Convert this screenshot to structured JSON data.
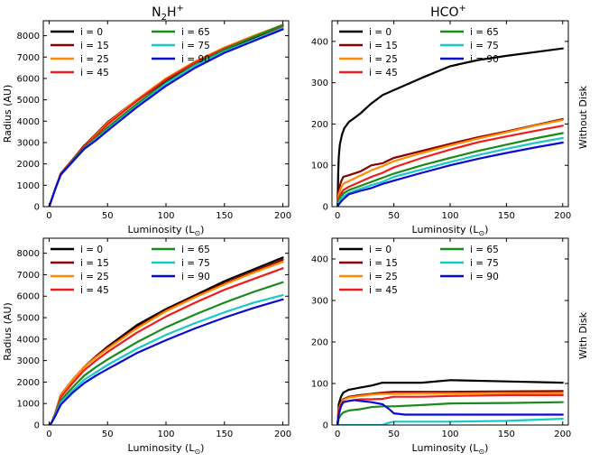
{
  "figure": {
    "col_titles": {
      "n2h": {
        "base": "N",
        "sub": "2",
        "mid": "H",
        "sup": "+"
      },
      "hco": {
        "base": "HCO",
        "sup": "+"
      }
    },
    "row_labels": [
      "Without Disk",
      "With Disk"
    ],
    "xlabel_main": "Luminosity (L",
    "xlabel_sub": "⊙",
    "xlabel_end": ")",
    "ylabel": "Radius (AU)"
  },
  "chart_data": [
    {
      "type": "line",
      "panel": "n2h-top",
      "title": "N2H+",
      "row": "Without Disk",
      "xlabel": "Luminosity (L⊙)",
      "ylabel": "Radius (AU)",
      "xlim": [
        -5,
        205
      ],
      "ylim": [
        0,
        8700
      ],
      "xticks": [
        0,
        50,
        100,
        150,
        200
      ],
      "yticks": [
        0,
        1000,
        2000,
        3000,
        4000,
        5000,
        6000,
        7000,
        8000
      ],
      "series": [
        {
          "name": "i = 0",
          "color": "#000000",
          "x": [
            0,
            1,
            5,
            10,
            20,
            30,
            40,
            50,
            75,
            100,
            125,
            150,
            175,
            200
          ],
          "y": [
            0,
            150,
            800,
            1550,
            2200,
            2850,
            3350,
            3850,
            4950,
            5900,
            6700,
            7350,
            7900,
            8450
          ]
        },
        {
          "name": "i = 15",
          "color": "#8b0000",
          "x": [
            0,
            1,
            5,
            10,
            20,
            30,
            40,
            50,
            75,
            100,
            125,
            150,
            175,
            200
          ],
          "y": [
            0,
            150,
            800,
            1550,
            2200,
            2850,
            3400,
            3950,
            5000,
            5950,
            6750,
            7400,
            7950,
            8500
          ]
        },
        {
          "name": "i = 25",
          "color": "#ff8c00",
          "x": [
            0,
            1,
            5,
            10,
            20,
            30,
            40,
            50,
            75,
            100,
            125,
            150,
            175,
            200
          ],
          "y": [
            0,
            150,
            800,
            1550,
            2200,
            2800,
            3350,
            3900,
            5000,
            6000,
            6800,
            7450,
            8000,
            8500
          ]
        },
        {
          "name": "i = 45",
          "color": "#ee1c1c",
          "x": [
            0,
            1,
            5,
            10,
            20,
            30,
            40,
            50,
            75,
            100,
            125,
            150,
            175,
            200
          ],
          "y": [
            0,
            150,
            800,
            1550,
            2200,
            2800,
            3300,
            3850,
            4950,
            5950,
            6750,
            7400,
            7950,
            8450
          ]
        },
        {
          "name": "i = 65",
          "color": "#1a8a1a",
          "x": [
            0,
            1,
            5,
            10,
            20,
            30,
            40,
            50,
            75,
            100,
            125,
            150,
            175,
            200
          ],
          "y": [
            0,
            150,
            800,
            1500,
            2150,
            2750,
            3200,
            3700,
            4800,
            5800,
            6650,
            7350,
            7950,
            8500
          ]
        },
        {
          "name": "i = 75",
          "color": "#17c9c9",
          "x": [
            0,
            1,
            5,
            10,
            20,
            30,
            40,
            50,
            75,
            100,
            125,
            150,
            175,
            200
          ],
          "y": [
            0,
            150,
            800,
            1500,
            2100,
            2700,
            3150,
            3600,
            4700,
            5750,
            6600,
            7250,
            7800,
            8350
          ]
        },
        {
          "name": "i = 90",
          "color": "#0a0ad0",
          "x": [
            0,
            1,
            5,
            10,
            20,
            30,
            40,
            50,
            75,
            100,
            125,
            150,
            175,
            200
          ],
          "y": [
            0,
            150,
            800,
            1500,
            2100,
            2700,
            3100,
            3550,
            4650,
            5650,
            6500,
            7200,
            7750,
            8300
          ]
        }
      ]
    },
    {
      "type": "line",
      "panel": "hco-top",
      "title": "HCO+",
      "row": "Without Disk",
      "xlabel": "Luminosity (L⊙)",
      "ylabel": "",
      "xlim": [
        -5,
        205
      ],
      "ylim": [
        0,
        450
      ],
      "xticks": [
        0,
        50,
        100,
        150,
        200
      ],
      "yticks": [
        0,
        100,
        200,
        300,
        400
      ],
      "series": [
        {
          "name": "i = 0",
          "color": "#000000",
          "x": [
            0,
            0.5,
            1,
            2,
            4,
            6,
            10,
            15,
            20,
            30,
            40,
            50,
            75,
            100,
            125,
            150,
            175,
            200
          ],
          "y": [
            0,
            80,
            120,
            150,
            175,
            190,
            205,
            215,
            225,
            250,
            270,
            282,
            312,
            340,
            355,
            365,
            374,
            383
          ]
        },
        {
          "name": "i = 15",
          "color": "#8b0000",
          "x": [
            0,
            1,
            3,
            5,
            10,
            20,
            30,
            40,
            50,
            75,
            100,
            125,
            150,
            175,
            200
          ],
          "y": [
            0,
            40,
            60,
            72,
            76,
            85,
            100,
            105,
            118,
            135,
            152,
            168,
            182,
            197,
            212
          ]
        },
        {
          "name": "i = 25",
          "color": "#ff8c00",
          "x": [
            0,
            1,
            3,
            5,
            10,
            20,
            30,
            40,
            50,
            75,
            100,
            125,
            150,
            175,
            200
          ],
          "y": [
            0,
            30,
            45,
            55,
            62,
            75,
            88,
            98,
            110,
            130,
            148,
            165,
            180,
            196,
            210
          ]
        },
        {
          "name": "i = 45",
          "color": "#ee1c1c",
          "x": [
            0,
            1,
            3,
            5,
            10,
            20,
            30,
            40,
            50,
            75,
            100,
            125,
            150,
            175,
            200
          ],
          "y": [
            0,
            20,
            32,
            40,
            48,
            60,
            72,
            82,
            95,
            118,
            138,
            156,
            170,
            183,
            196
          ]
        },
        {
          "name": "i = 65",
          "color": "#1a8a1a",
          "x": [
            0,
            1,
            3,
            5,
            10,
            20,
            30,
            40,
            50,
            75,
            100,
            125,
            150,
            175,
            200
          ],
          "y": [
            0,
            15,
            25,
            32,
            40,
            50,
            60,
            70,
            80,
            100,
            118,
            135,
            150,
            165,
            178
          ]
        },
        {
          "name": "i = 75",
          "color": "#17c9c9",
          "x": [
            0,
            1,
            3,
            5,
            10,
            20,
            30,
            40,
            50,
            75,
            100,
            125,
            150,
            175,
            200
          ],
          "y": [
            0,
            10,
            18,
            25,
            33,
            43,
            52,
            60,
            72,
            90,
            108,
            125,
            140,
            154,
            166
          ]
        },
        {
          "name": "i = 90",
          "color": "#0a0ad0",
          "x": [
            0,
            1,
            3,
            5,
            10,
            20,
            30,
            40,
            50,
            75,
            100,
            125,
            150,
            175,
            200
          ],
          "y": [
            0,
            5,
            12,
            18,
            30,
            38,
            45,
            55,
            63,
            82,
            100,
            116,
            130,
            143,
            155
          ]
        }
      ]
    },
    {
      "type": "line",
      "panel": "n2h-bottom",
      "title": "",
      "row": "With Disk",
      "xlabel": "Luminosity (L⊙)",
      "ylabel": "Radius (AU)",
      "xlim": [
        -5,
        205
      ],
      "ylim": [
        0,
        8700
      ],
      "xticks": [
        0,
        50,
        100,
        150,
        200
      ],
      "yticks": [
        0,
        1000,
        2000,
        3000,
        4000,
        5000,
        6000,
        7000,
        8000
      ],
      "series": [
        {
          "name": "i = 0",
          "color": "#000000",
          "x": [
            0,
            2,
            5,
            10,
            20,
            30,
            40,
            50,
            75,
            100,
            125,
            150,
            175,
            200
          ],
          "y": [
            0,
            100,
            500,
            1400,
            2100,
            2700,
            3200,
            3650,
            4650,
            5400,
            6050,
            6700,
            7250,
            7800
          ]
        },
        {
          "name": "i = 15",
          "color": "#8b0000",
          "x": [
            0,
            2,
            5,
            10,
            20,
            30,
            40,
            50,
            75,
            100,
            125,
            150,
            175,
            200
          ],
          "y": [
            0,
            100,
            500,
            1400,
            2100,
            2700,
            3200,
            3600,
            4550,
            5350,
            6000,
            6600,
            7150,
            7700
          ]
        },
        {
          "name": "i = 25",
          "color": "#ff8c00",
          "x": [
            0,
            2,
            5,
            10,
            20,
            30,
            40,
            50,
            75,
            100,
            125,
            150,
            175,
            200
          ],
          "y": [
            0,
            100,
            500,
            1400,
            2100,
            2700,
            3150,
            3550,
            4500,
            5300,
            5950,
            6550,
            7100,
            7600
          ]
        },
        {
          "name": "i = 45",
          "color": "#ee1c1c",
          "x": [
            0,
            2,
            5,
            10,
            20,
            30,
            40,
            50,
            75,
            100,
            125,
            150,
            175,
            200
          ],
          "y": [
            0,
            100,
            500,
            1300,
            1950,
            2550,
            3000,
            3400,
            4300,
            5050,
            5700,
            6300,
            6800,
            7300
          ]
        },
        {
          "name": "i = 65",
          "color": "#1a8a1a",
          "x": [
            0,
            2,
            5,
            10,
            20,
            30,
            40,
            50,
            75,
            100,
            125,
            150,
            175,
            200
          ],
          "y": [
            0,
            100,
            450,
            1150,
            1750,
            2300,
            2700,
            3050,
            3850,
            4550,
            5150,
            5700,
            6200,
            6650
          ]
        },
        {
          "name": "i = 75",
          "color": "#17c9c9",
          "x": [
            0,
            2,
            5,
            10,
            20,
            30,
            40,
            50,
            75,
            100,
            125,
            150,
            175,
            200
          ],
          "y": [
            0,
            100,
            450,
            1050,
            1600,
            2100,
            2450,
            2800,
            3550,
            4200,
            4750,
            5250,
            5700,
            6050
          ]
        },
        {
          "name": "i = 90",
          "color": "#0a0ad0",
          "x": [
            0,
            2,
            5,
            10,
            20,
            30,
            40,
            50,
            75,
            100,
            125,
            150,
            175,
            200
          ],
          "y": [
            0,
            100,
            400,
            950,
            1500,
            1950,
            2300,
            2600,
            3350,
            3950,
            4500,
            5000,
            5450,
            5850
          ]
        }
      ]
    },
    {
      "type": "line",
      "panel": "hco-bottom",
      "title": "",
      "row": "With Disk",
      "xlabel": "Luminosity (L⊙)",
      "ylabel": "",
      "xlim": [
        -5,
        205
      ],
      "ylim": [
        0,
        450
      ],
      "xticks": [
        0,
        50,
        100,
        150,
        200
      ],
      "yticks": [
        0,
        100,
        200,
        300,
        400
      ],
      "series": [
        {
          "name": "i = 0",
          "color": "#000000",
          "x": [
            0,
            1,
            3,
            5,
            10,
            20,
            30,
            40,
            50,
            75,
            100,
            150,
            200
          ],
          "y": [
            0,
            50,
            68,
            78,
            85,
            90,
            95,
            102,
            102,
            102,
            108,
            105,
            102
          ]
        },
        {
          "name": "i = 15",
          "color": "#8b0000",
          "x": [
            0,
            1,
            3,
            5,
            10,
            20,
            30,
            40,
            50,
            75,
            100,
            150,
            200
          ],
          "y": [
            0,
            40,
            55,
            62,
            68,
            72,
            75,
            78,
            80,
            80,
            80,
            81,
            82
          ]
        },
        {
          "name": "i = 25",
          "color": "#ff8c00",
          "x": [
            0,
            1,
            3,
            5,
            10,
            20,
            30,
            40,
            50,
            75,
            100,
            150,
            200
          ],
          "y": [
            0,
            38,
            52,
            60,
            66,
            70,
            73,
            75,
            75,
            76,
            76,
            77,
            77
          ]
        },
        {
          "name": "i = 45",
          "color": "#ee1c1c",
          "x": [
            0,
            1,
            3,
            5,
            10,
            20,
            30,
            40,
            50,
            75,
            100,
            150,
            200
          ],
          "y": [
            0,
            35,
            48,
            55,
            58,
            62,
            62,
            63,
            68,
            68,
            70,
            72,
            72
          ]
        },
        {
          "name": "i = 65",
          "color": "#1a8a1a",
          "x": [
            0,
            1,
            3,
            5,
            10,
            20,
            30,
            40,
            50,
            75,
            100,
            150,
            200
          ],
          "y": [
            0,
            15,
            25,
            30,
            35,
            38,
            43,
            45,
            45,
            48,
            52,
            53,
            55
          ]
        },
        {
          "name": "i = 75",
          "color": "#17c9c9",
          "x": [
            0,
            30,
            40,
            45,
            50,
            75,
            100,
            150,
            200
          ],
          "y": [
            0,
            0,
            0,
            5,
            8,
            8,
            8,
            10,
            15
          ]
        },
        {
          "name": "i = 90",
          "color": "#0a0ad0",
          "x": [
            0,
            1,
            3,
            5,
            10,
            15,
            20,
            30,
            40,
            45,
            50,
            60,
            75,
            100,
            150,
            200
          ],
          "y": [
            0,
            25,
            45,
            55,
            58,
            60,
            58,
            55,
            50,
            40,
            28,
            25,
            25,
            25,
            25,
            25
          ]
        }
      ]
    }
  ]
}
